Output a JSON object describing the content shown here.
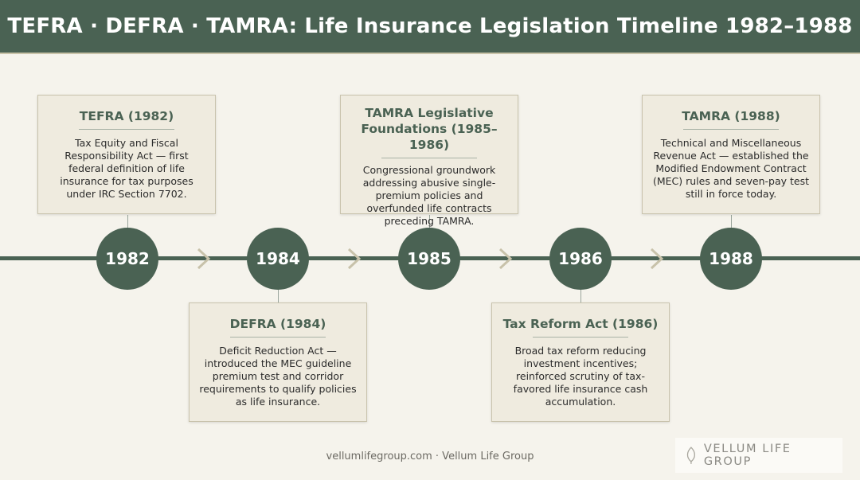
{
  "header": {
    "title": "TEFRA · DEFRA · TAMRA: Life Insurance Legislation Timeline 1982–1988"
  },
  "timeline": {
    "years": [
      "1982",
      "1984",
      "1985",
      "1986",
      "1988"
    ]
  },
  "cards": [
    {
      "title": "TEFRA (1982)",
      "body": "Tax Equity and Fiscal Responsibility Act — first federal definition of life insurance for tax purposes under IRC Section 7702."
    },
    {
      "title": "DEFRA (1984)",
      "body": "Deficit Reduction Act — introduced the MEC guideline premium test and corridor requirements to qualify policies as life insurance."
    },
    {
      "title": "TAMRA Legislative Foundations (1985–1986)",
      "body": "Congressional groundwork addressing abusive single-premium policies and overfunded life contracts preceding TAMRA."
    },
    {
      "title": "Tax Reform Act (1986)",
      "body": "Broad tax reform reducing investment incentives; reinforced scrutiny of tax-favored life insurance cash accumulation."
    },
    {
      "title": "TAMRA (1988)",
      "body": "Technical and Miscellaneous Revenue Act — established the Modified Endowment Contract (MEC) rules and seven-pay test still in force today."
    }
  ],
  "footer": {
    "text": "vellumlifegroup.com · Vellum Life Group"
  },
  "brand": {
    "text": "VELLUM LIFE GROUP",
    "icon": "leaf-icon"
  },
  "colors": {
    "primary": "#4a6253",
    "background": "#f5f3ec",
    "card": "#efebdf"
  }
}
